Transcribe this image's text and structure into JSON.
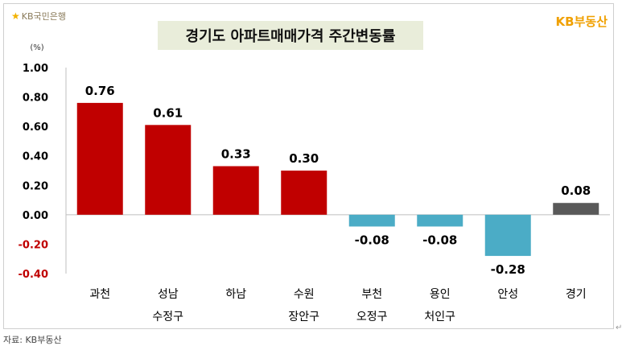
{
  "header": {
    "bank_logo": "KB국민은행",
    "bank_icon": "kb-star-icon",
    "title": "경기도 아파트매매가격 주간변동률",
    "brand": "KB부동산"
  },
  "footer": {
    "source": "자료: KB부동산"
  },
  "chart_data": {
    "type": "bar",
    "title": "경기도 아파트매매가격 주간변동률",
    "unit_label": "(%)",
    "ylim": [
      -0.4,
      1.0
    ],
    "yticks": [
      "1.00",
      "0.80",
      "0.60",
      "0.40",
      "0.20",
      "0.00",
      "-0.20",
      "-0.40"
    ],
    "ytick_values": [
      1.0,
      0.8,
      0.6,
      0.4,
      0.2,
      0.0,
      -0.2,
      -0.4
    ],
    "grid": false,
    "categories": [
      [
        "과천",
        ""
      ],
      [
        "성남",
        "수정구"
      ],
      [
        "하남",
        ""
      ],
      [
        "수원",
        "장안구"
      ],
      [
        "부천",
        "오정구"
      ],
      [
        "용인",
        "처인구"
      ],
      [
        "안성",
        ""
      ],
      [
        "경기",
        ""
      ]
    ],
    "values": [
      0.76,
      0.61,
      0.33,
      0.3,
      -0.08,
      -0.08,
      -0.28,
      0.08
    ],
    "value_labels": [
      "0.76",
      "0.61",
      "0.33",
      "0.30",
      "-0.08",
      "-0.08",
      "-0.28",
      "0.08"
    ],
    "colors": {
      "positive": "#c00000",
      "negative": "#4bacc6",
      "total": "#595959",
      "negative_tick": "#c00000",
      "tick": "#000000"
    }
  }
}
